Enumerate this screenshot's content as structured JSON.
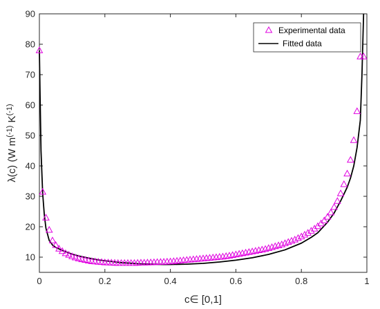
{
  "chart_data": {
    "type": "scatter",
    "xlabel": "c∈ [0,1]",
    "ylabel": "λ(c) (W m^(-1) K^(-1)",
    "ylabel_parts": {
      "main": "λ(c) (W m",
      "exp1": "(-1)",
      "mid": " K",
      "exp2": "(-1)"
    },
    "xlim": [
      0,
      1
    ],
    "ylim": [
      5,
      90
    ],
    "xticks": [
      0,
      0.2,
      0.4,
      0.6,
      0.8,
      1
    ],
    "xtick_labels": [
      "0",
      "0.2",
      "0.4",
      "0.6",
      "0.8",
      "1"
    ],
    "yticks": [
      10,
      20,
      30,
      40,
      50,
      60,
      70,
      80,
      90
    ],
    "ytick_labels": [
      "10",
      "20",
      "30",
      "40",
      "50",
      "60",
      "70",
      "80",
      "90"
    ],
    "grid": false,
    "legend_position": "top-right",
    "colors": {
      "experimental": "#e000e0",
      "fitted": "#000000",
      "axes": "#262626"
    },
    "series": [
      {
        "name": "Experimental data",
        "type": "scatter",
        "marker": "triangle",
        "x": [
          0.0,
          0.01,
          0.02,
          0.03,
          0.04,
          0.05,
          0.06,
          0.07,
          0.08,
          0.09,
          0.1,
          0.11,
          0.12,
          0.13,
          0.14,
          0.15,
          0.16,
          0.17,
          0.18,
          0.19,
          0.2,
          0.21,
          0.22,
          0.23,
          0.24,
          0.25,
          0.26,
          0.27,
          0.28,
          0.29,
          0.3,
          0.31,
          0.32,
          0.33,
          0.34,
          0.35,
          0.36,
          0.37,
          0.38,
          0.39,
          0.4,
          0.41,
          0.42,
          0.43,
          0.44,
          0.45,
          0.46,
          0.47,
          0.48,
          0.49,
          0.5,
          0.51,
          0.52,
          0.53,
          0.54,
          0.55,
          0.56,
          0.57,
          0.58,
          0.59,
          0.6,
          0.61,
          0.62,
          0.63,
          0.64,
          0.65,
          0.66,
          0.67,
          0.68,
          0.69,
          0.7,
          0.71,
          0.72,
          0.73,
          0.74,
          0.75,
          0.76,
          0.77,
          0.78,
          0.79,
          0.8,
          0.81,
          0.82,
          0.83,
          0.84,
          0.85,
          0.86,
          0.87,
          0.88,
          0.89,
          0.9,
          0.91,
          0.92,
          0.93,
          0.94,
          0.95,
          0.96,
          0.97,
          0.98,
          0.99
        ],
        "y": [
          78.0,
          31.5,
          23.0,
          19.0,
          15.5,
          14.0,
          12.8,
          12.0,
          11.3,
          10.8,
          10.3,
          9.9,
          9.6,
          9.3,
          9.1,
          8.9,
          8.7,
          8.6,
          8.5,
          8.4,
          8.3,
          8.25,
          8.2,
          8.15,
          8.1,
          8.1,
          8.1,
          8.1,
          8.1,
          8.1,
          8.15,
          8.2,
          8.2,
          8.25,
          8.3,
          8.35,
          8.4,
          8.45,
          8.5,
          8.55,
          8.6,
          8.7,
          8.8,
          8.9,
          9.0,
          9.1,
          9.2,
          9.3,
          9.4,
          9.5,
          9.6,
          9.7,
          9.8,
          9.9,
          10.0,
          10.1,
          10.2,
          10.35,
          10.5,
          10.7,
          10.9,
          11.1,
          11.3,
          11.5,
          11.7,
          11.9,
          12.1,
          12.3,
          12.5,
          12.7,
          13.0,
          13.3,
          13.6,
          13.9,
          14.2,
          14.6,
          15.0,
          15.4,
          15.8,
          16.3,
          16.8,
          17.4,
          18.0,
          18.7,
          19.4,
          20.2,
          21.1,
          22.1,
          23.3,
          24.7,
          26.5,
          28.5,
          31.0,
          34.0,
          37.5,
          42.0,
          48.5,
          58.0,
          76.0,
          76.0
        ]
      },
      {
        "name": "Fitted data",
        "type": "line",
        "x": [
          0.0,
          0.002,
          0.005,
          0.01,
          0.015,
          0.02,
          0.03,
          0.04,
          0.05,
          0.06,
          0.07,
          0.08,
          0.1,
          0.12,
          0.15,
          0.18,
          0.2,
          0.25,
          0.3,
          0.35,
          0.38,
          0.4,
          0.45,
          0.5,
          0.55,
          0.6,
          0.65,
          0.7,
          0.75,
          0.8,
          0.83,
          0.85,
          0.88,
          0.9,
          0.92,
          0.94,
          0.95,
          0.96,
          0.97,
          0.975,
          0.98,
          0.985,
          0.99
        ],
        "y": [
          78.0,
          64.0,
          45.0,
          31.0,
          24.0,
          19.5,
          15.5,
          14.0,
          13.2,
          12.7,
          12.2,
          11.8,
          11.0,
          10.4,
          9.7,
          9.1,
          8.8,
          8.2,
          7.85,
          7.65,
          7.6,
          7.6,
          7.7,
          7.95,
          8.4,
          9.0,
          9.8,
          10.9,
          12.4,
          14.6,
          16.5,
          18.0,
          21.5,
          24.5,
          28.5,
          33.0,
          36.0,
          40.0,
          46.0,
          50.5,
          55.0,
          70.0,
          90.0
        ]
      }
    ]
  }
}
